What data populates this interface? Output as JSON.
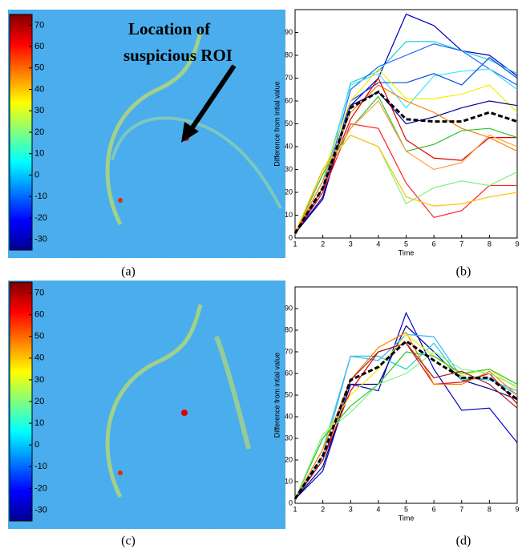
{
  "chart_data": [
    {
      "type": "heatmap",
      "label": "(a)",
      "annotation": [
        "Location of",
        "suspicious ROI"
      ],
      "clim": [
        -35,
        75
      ],
      "cticks": [
        70,
        60,
        50,
        40,
        30,
        20,
        10,
        0,
        -10,
        -20,
        -30
      ]
    },
    {
      "type": "line",
      "label": "(b)",
      "xlabel": "Time",
      "ylabel": "Difference from intial value",
      "x": [
        1,
        2,
        3,
        4,
        5,
        6,
        7,
        8,
        9
      ],
      "xlim": [
        1,
        9
      ],
      "ylim": [
        0,
        100
      ],
      "xticks": [
        1,
        2,
        3,
        4,
        5,
        6,
        7,
        8,
        9
      ],
      "yticks": [
        0,
        10,
        20,
        30,
        40,
        50,
        60,
        70,
        80,
        90
      ],
      "series": [
        {
          "color": "#0000c8",
          "values": [
            2,
            18,
            58,
            70,
            98,
            93,
            82,
            80,
            71
          ]
        },
        {
          "color": "#20d0d0",
          "values": [
            2,
            22,
            68,
            73,
            86,
            86,
            82,
            78,
            72
          ]
        },
        {
          "color": "#2060ff",
          "values": [
            2,
            20,
            65,
            75,
            80,
            85,
            82,
            74,
            67
          ]
        },
        {
          "color": "#40e0ff",
          "values": [
            2,
            25,
            67,
            72,
            57,
            71,
            73,
            74,
            65
          ]
        },
        {
          "color": "#0050e0",
          "values": [
            2,
            20,
            60,
            68,
            68,
            72,
            67,
            79,
            70
          ]
        },
        {
          "color": "#f0f000",
          "values": [
            2,
            28,
            60,
            74,
            61,
            61,
            63,
            67,
            55
          ]
        },
        {
          "color": "#000090",
          "values": [
            2,
            17,
            58,
            64,
            50,
            53,
            57,
            60,
            58
          ]
        },
        {
          "color": "#ff8000",
          "values": [
            2,
            25,
            55,
            67,
            60,
            55,
            48,
            44,
            38
          ]
        },
        {
          "color": "#e00000",
          "values": [
            2,
            22,
            52,
            70,
            43,
            35,
            34,
            44,
            44
          ]
        },
        {
          "color": "#ff2020",
          "values": [
            2,
            20,
            50,
            48,
            24,
            9,
            12,
            23,
            23
          ]
        },
        {
          "color": "#30c030",
          "values": [
            2,
            28,
            48,
            62,
            38,
            41,
            47,
            48,
            44
          ]
        },
        {
          "color": "#80f080",
          "values": [
            2,
            30,
            45,
            40,
            15,
            22,
            25,
            23,
            29
          ]
        },
        {
          "color": "#ffa040",
          "values": [
            2,
            30,
            48,
            60,
            38,
            30,
            33,
            45,
            40
          ]
        },
        {
          "color": "#ffc000",
          "values": [
            2,
            30,
            45,
            40,
            18,
            14,
            15,
            18,
            20
          ]
        },
        {
          "color": "#000000",
          "dash": true,
          "values": [
            2,
            22,
            57,
            64,
            52,
            51,
            51,
            55,
            51
          ]
        }
      ]
    },
    {
      "type": "heatmap",
      "label": "(c)",
      "clim": [
        -35,
        75
      ],
      "cticks": [
        70,
        60,
        50,
        40,
        30,
        20,
        10,
        0,
        -10,
        -20,
        -30
      ]
    },
    {
      "type": "line",
      "label": "(d)",
      "xlabel": "Time",
      "ylabel": "Difference from intial value",
      "x": [
        1,
        2,
        3,
        4,
        5,
        6,
        7,
        8,
        9
      ],
      "xlim": [
        1,
        9
      ],
      "ylim": [
        0,
        100
      ],
      "xticks": [
        1,
        2,
        3,
        4,
        5,
        6,
        7,
        8,
        9
      ],
      "yticks": [
        0,
        10,
        20,
        30,
        40,
        50,
        60,
        70,
        80,
        90
      ],
      "series": [
        {
          "color": "#0000c8",
          "values": [
            2,
            15,
            55,
            52,
            88,
            62,
            43,
            44,
            28
          ]
        },
        {
          "color": "#000090",
          "values": [
            2,
            17,
            55,
            55,
            82,
            70,
            57,
            53,
            48
          ]
        },
        {
          "color": "#20d0d0",
          "values": [
            2,
            25,
            68,
            68,
            62,
            74,
            57,
            58,
            50
          ]
        },
        {
          "color": "#40b0ff",
          "values": [
            2,
            22,
            68,
            66,
            78,
            77,
            58,
            57,
            52
          ]
        },
        {
          "color": "#e00000",
          "values": [
            2,
            20,
            52,
            70,
            74,
            55,
            56,
            60,
            46
          ]
        },
        {
          "color": "#ff8000",
          "values": [
            2,
            25,
            57,
            72,
            79,
            55,
            55,
            61,
            50
          ]
        },
        {
          "color": "#f0f000",
          "values": [
            2,
            30,
            50,
            62,
            78,
            68,
            59,
            62,
            53
          ]
        },
        {
          "color": "#30c030",
          "values": [
            2,
            30,
            45,
            55,
            70,
            68,
            60,
            62,
            55
          ]
        },
        {
          "color": "#80f080",
          "values": [
            2,
            32,
            42,
            55,
            60,
            70,
            62,
            60,
            54
          ]
        },
        {
          "color": "#a02020",
          "values": [
            2,
            20,
            57,
            70,
            74,
            58,
            61,
            55,
            44
          ]
        },
        {
          "color": "#000000",
          "dash": true,
          "values": [
            2,
            22,
            57,
            63,
            75,
            66,
            58,
            58,
            48
          ]
        }
      ]
    }
  ]
}
